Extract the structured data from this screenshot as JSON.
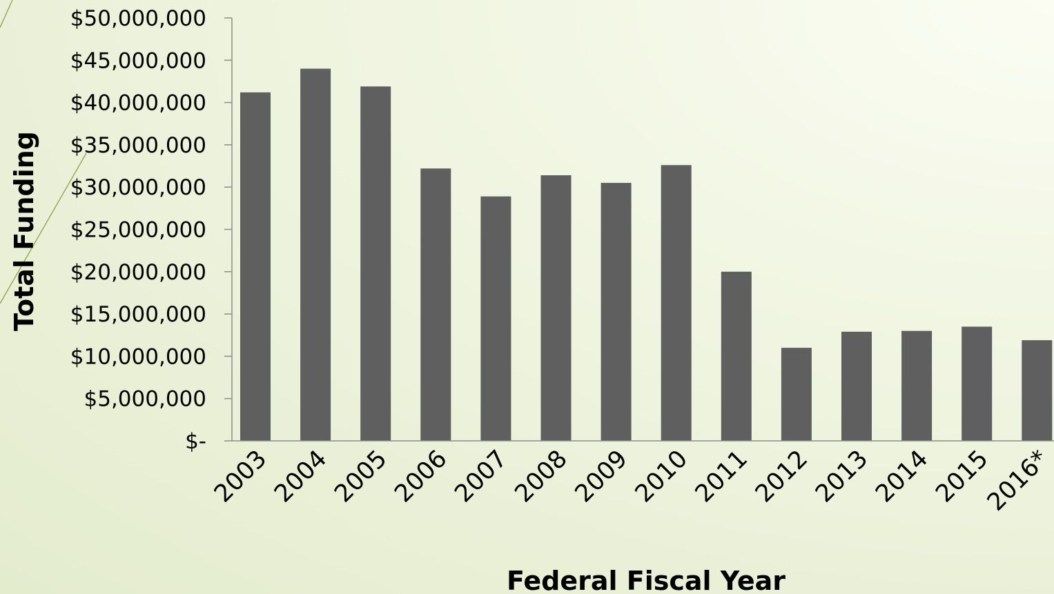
{
  "colors": {
    "bar": "#5f5f5f",
    "axis": "#8c8c8c",
    "decor_line": "#9aa85a"
  },
  "chart_data": {
    "type": "bar",
    "categories": [
      "2003",
      "2004",
      "2005",
      "2006",
      "2007",
      "2008",
      "2009",
      "2010",
      "2011",
      "2012",
      "2013",
      "2014",
      "2015",
      "2016*"
    ],
    "values": [
      41200000,
      44000000,
      41900000,
      32200000,
      28900000,
      31400000,
      30500000,
      32600000,
      20000000,
      11000000,
      12900000,
      13000000,
      13500000,
      11900000
    ],
    "xlabel": "Federal Fiscal Year",
    "ylabel": "Total Funding",
    "ylim": [
      0,
      50000000
    ],
    "yticks": [
      {
        "value": 0,
        "label": "$-"
      },
      {
        "value": 5000000,
        "label": "$5,000,000"
      },
      {
        "value": 10000000,
        "label": "$10,000,000"
      },
      {
        "value": 15000000,
        "label": "$15,000,000"
      },
      {
        "value": 20000000,
        "label": "$20,000,000"
      },
      {
        "value": 25000000,
        "label": "$25,000,000"
      },
      {
        "value": 30000000,
        "label": "$30,000,000"
      },
      {
        "value": 35000000,
        "label": "$35,000,000"
      },
      {
        "value": 40000000,
        "label": "$40,000,000"
      },
      {
        "value": 45000000,
        "label": "$45,000,000"
      },
      {
        "value": 50000000,
        "label": "$50,000,000"
      }
    ],
    "grid": false,
    "legend": "none"
  }
}
